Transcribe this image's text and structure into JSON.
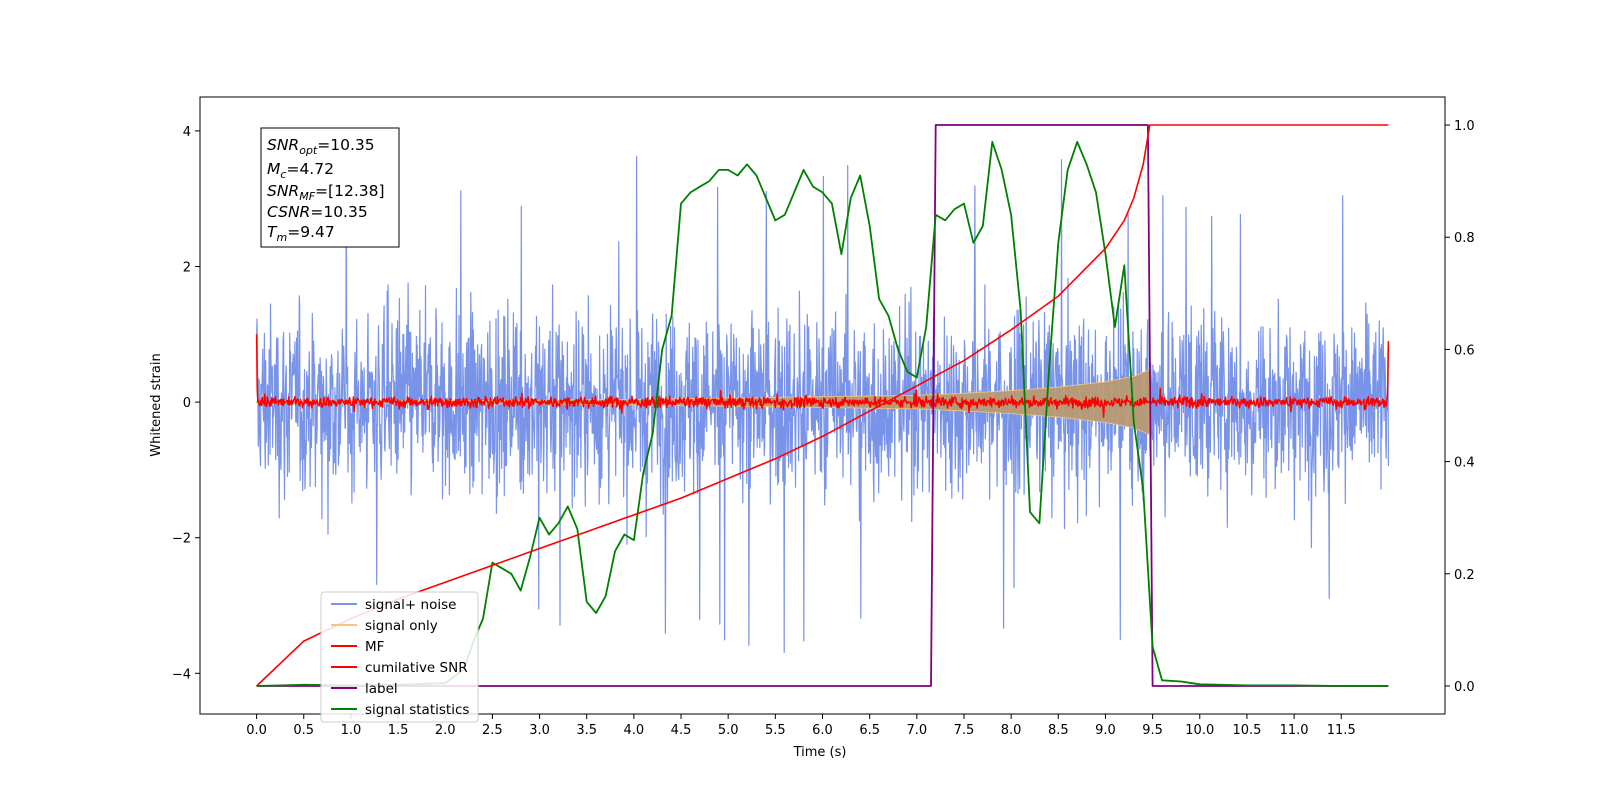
{
  "chart_data": {
    "type": "line",
    "xlabel": "Time (s)",
    "ylabel": "Whitened strain",
    "xlim": [
      -0.6,
      12.6
    ],
    "ylim": [
      -4.6,
      4.5
    ],
    "y2lim": [
      -0.05,
      1.05
    ],
    "x_ticks": [
      "0.0",
      "0.5",
      "1.0",
      "1.5",
      "2.0",
      "2.5",
      "3.0",
      "3.5",
      "4.0",
      "4.5",
      "5.0",
      "5.5",
      "6.0",
      "6.5",
      "7.0",
      "7.5",
      "8.0",
      "8.5",
      "9.0",
      "9.5",
      "10.0",
      "10.5",
      "11.0",
      "11.5"
    ],
    "y_ticks": [
      "4",
      "2",
      "0",
      "−2",
      "−4"
    ],
    "y2_ticks": [
      "1.0",
      "0.8",
      "0.6",
      "0.4",
      "0.2",
      "0.0"
    ],
    "grid": false,
    "legend_position": "lower-left",
    "colors": {
      "signal_noise": "#7893e8",
      "signal_only": "#f5c77e",
      "signal_only_overlap": "#b89a73",
      "mf": "#ff0000",
      "cumulative_snr": "#ff0000",
      "label": "#800080",
      "signal_statistics": "#008000"
    },
    "annotation": {
      "snr_opt": "10.35",
      "mc": "4.72",
      "snr_mf": "[12.38]",
      "csnr": "10.35",
      "tm": "9.47"
    },
    "series": [
      {
        "name": "signal+ noise",
        "axis": "left",
        "description_envelope": {
          "x": [
            0.0,
            12.0
          ],
          "typical_max": 2.3,
          "typical_min": -2.3,
          "peak_max": 4.0,
          "peak_min": -4.15
        }
      },
      {
        "name": "signal only",
        "axis": "left",
        "envelope": {
          "x": [
            0.0,
            2.0,
            4.0,
            5.0,
            6.0,
            7.0,
            7.5,
            8.0,
            8.5,
            9.0,
            9.3,
            9.47
          ],
          "amplitude": [
            0.01,
            0.02,
            0.04,
            0.06,
            0.08,
            0.1,
            0.13,
            0.17,
            0.22,
            0.3,
            0.38,
            0.48
          ]
        }
      },
      {
        "name": "MF",
        "axis": "left",
        "description": "noisy trace around 0 with amplitude about 0.15, spike to 1.0 at x=0.0 and 0.9 at x=12.0"
      },
      {
        "name": "cumilative SNR",
        "axis": "right",
        "x": [
          0.0,
          0.5,
          1.0,
          1.5,
          2.0,
          2.5,
          3.0,
          3.5,
          4.0,
          4.5,
          5.0,
          5.5,
          6.0,
          6.5,
          7.0,
          7.5,
          8.0,
          8.5,
          9.0,
          9.2,
          9.3,
          9.4,
          9.47,
          9.5,
          12.0
        ],
        "y": [
          0.0,
          0.08,
          0.12,
          0.155,
          0.185,
          0.215,
          0.245,
          0.275,
          0.305,
          0.335,
          0.37,
          0.405,
          0.445,
          0.49,
          0.535,
          0.58,
          0.635,
          0.695,
          0.78,
          0.83,
          0.87,
          0.93,
          1.0,
          1.0,
          1.0
        ]
      },
      {
        "name": "label",
        "axis": "right",
        "x": [
          0.0,
          7.15,
          7.2,
          9.45,
          9.5,
          12.0
        ],
        "y": [
          0.0,
          0.0,
          1.0,
          1.0,
          0.0,
          0.0
        ]
      },
      {
        "name": "signal statistics",
        "axis": "right",
        "x": [
          0.0,
          0.5,
          1.0,
          1.5,
          2.0,
          2.2,
          2.3,
          2.4,
          2.5,
          2.6,
          2.7,
          2.8,
          2.9,
          3.0,
          3.1,
          3.2,
          3.3,
          3.4,
          3.5,
          3.6,
          3.7,
          3.8,
          3.9,
          4.0,
          4.1,
          4.2,
          4.3,
          4.4,
          4.5,
          4.6,
          4.7,
          4.8,
          4.9,
          5.0,
          5.1,
          5.2,
          5.3,
          5.4,
          5.5,
          5.6,
          5.7,
          5.8,
          5.9,
          6.0,
          6.1,
          6.2,
          6.3,
          6.4,
          6.5,
          6.6,
          6.7,
          6.8,
          6.9,
          7.0,
          7.1,
          7.2,
          7.3,
          7.4,
          7.5,
          7.6,
          7.7,
          7.8,
          7.9,
          8.0,
          8.1,
          8.2,
          8.3,
          8.4,
          8.5,
          8.6,
          8.7,
          8.8,
          8.9,
          9.0,
          9.1,
          9.2,
          9.3,
          9.4,
          9.5,
          9.6,
          9.8,
          10.0,
          10.5,
          11.0,
          11.5,
          12.0
        ],
        "y": [
          0.0,
          0.002,
          0.001,
          0.002,
          0.005,
          0.03,
          0.08,
          0.12,
          0.22,
          0.21,
          0.2,
          0.17,
          0.23,
          0.3,
          0.27,
          0.29,
          0.32,
          0.28,
          0.15,
          0.13,
          0.16,
          0.24,
          0.27,
          0.26,
          0.38,
          0.45,
          0.6,
          0.66,
          0.86,
          0.88,
          0.89,
          0.9,
          0.92,
          0.92,
          0.91,
          0.93,
          0.91,
          0.87,
          0.83,
          0.84,
          0.88,
          0.92,
          0.89,
          0.88,
          0.86,
          0.77,
          0.87,
          0.91,
          0.82,
          0.69,
          0.66,
          0.6,
          0.56,
          0.55,
          0.64,
          0.84,
          0.83,
          0.85,
          0.86,
          0.79,
          0.82,
          0.97,
          0.92,
          0.84,
          0.67,
          0.31,
          0.29,
          0.56,
          0.79,
          0.92,
          0.97,
          0.93,
          0.88,
          0.77,
          0.64,
          0.75,
          0.47,
          0.35,
          0.07,
          0.01,
          0.008,
          0.003,
          0.001,
          0.001,
          0.0,
          0.0
        ]
      }
    ]
  }
}
